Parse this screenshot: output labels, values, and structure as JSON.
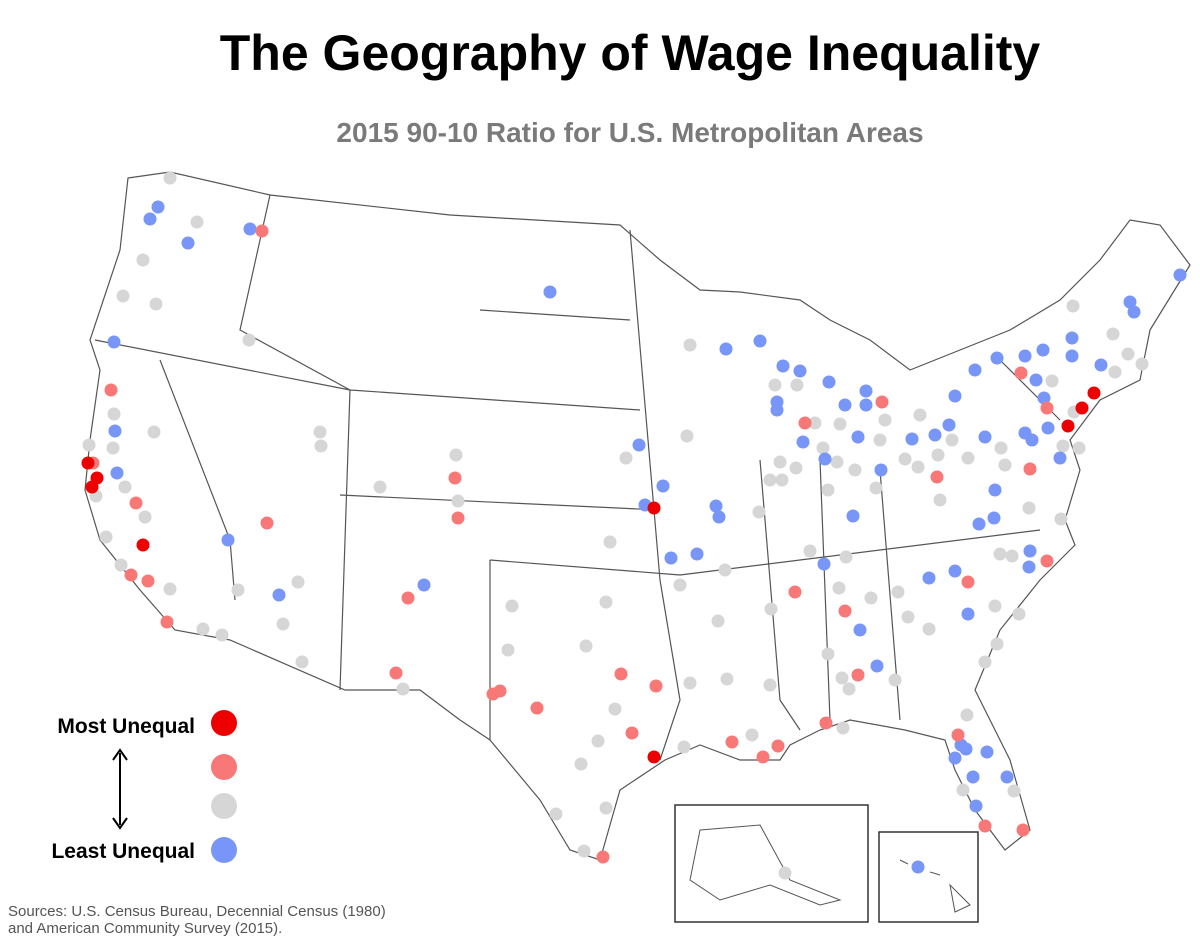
{
  "title": "The Geography of Wage Inequality",
  "subtitle": "2015 90-10 Ratio for U.S. Metropolitan Areas",
  "legend": {
    "levels": [
      {
        "label": "Most Unequal",
        "color": "#ee0000"
      },
      {
        "color": "#f87878"
      },
      {
        "color": "#d6d6d6"
      },
      {
        "label": "Least Unequal",
        "color": "#7895f8"
      }
    ]
  },
  "sources": [
    "Sources: U.S. Census Bureau, Decennial Census (1980)",
    "and American Community Survey (2015)."
  ]
}
